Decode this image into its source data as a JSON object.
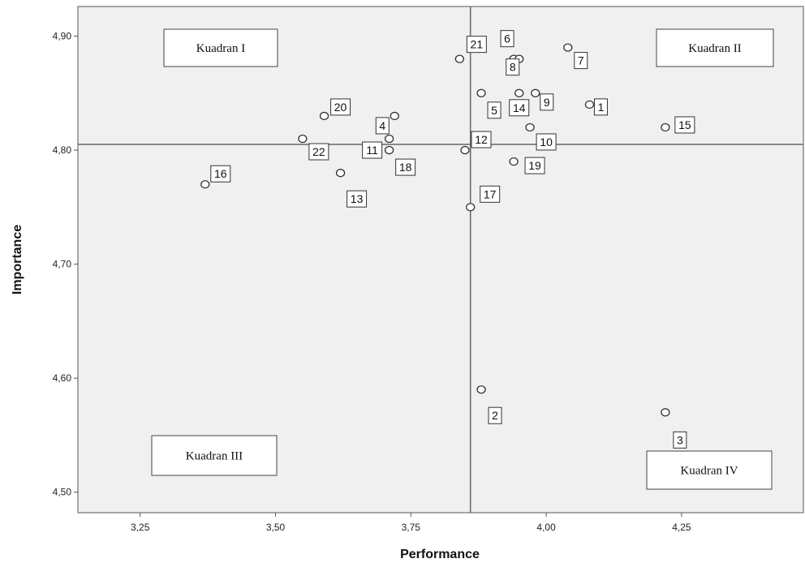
{
  "chart_data": {
    "type": "scatter",
    "xlabel": "Performance",
    "ylabel": "Importance",
    "xlim": [
      3.135,
      4.475
    ],
    "ylim": [
      4.482,
      4.926
    ],
    "x_ticks": [
      3.25,
      3.5,
      3.75,
      4.0,
      4.25
    ],
    "x_tick_labels": [
      "3,25",
      "3,50",
      "3,75",
      "4,00",
      "4,25"
    ],
    "y_ticks": [
      4.5,
      4.6,
      4.7,
      4.8,
      4.9
    ],
    "y_tick_labels": [
      "4,50",
      "4,60",
      "4,70",
      "4,80",
      "4,90"
    ],
    "grid": false,
    "reference_lines": {
      "x": 3.86,
      "y": 4.805
    },
    "quadrants": [
      "Kuadran I",
      "Kuadran II",
      "Kuadran III",
      "Kuadran IV"
    ],
    "points": [
      {
        "label": "1",
        "x": 4.08,
        "y": 4.84
      },
      {
        "label": "2",
        "x": 3.88,
        "y": 4.59
      },
      {
        "label": "3",
        "x": 4.22,
        "y": 4.57
      },
      {
        "label": "4",
        "x": 3.72,
        "y": 4.83
      },
      {
        "label": "5",
        "x": 3.88,
        "y": 4.85
      },
      {
        "label": "6",
        "x": 3.94,
        "y": 4.88
      },
      {
        "label": "7",
        "x": 4.04,
        "y": 4.89
      },
      {
        "label": "8",
        "x": 3.95,
        "y": 4.88
      },
      {
        "label": "9",
        "x": 3.98,
        "y": 4.85
      },
      {
        "label": "10",
        "x": 3.97,
        "y": 4.82
      },
      {
        "label": "11",
        "x": 3.71,
        "y": 4.81
      },
      {
        "label": "12",
        "x": 3.85,
        "y": 4.8
      },
      {
        "label": "13",
        "x": 3.62,
        "y": 4.78
      },
      {
        "label": "14",
        "x": 3.95,
        "y": 4.85
      },
      {
        "label": "15",
        "x": 4.22,
        "y": 4.82
      },
      {
        "label": "16",
        "x": 3.37,
        "y": 4.77
      },
      {
        "label": "17",
        "x": 3.86,
        "y": 4.75
      },
      {
        "label": "18",
        "x": 3.71,
        "y": 4.8
      },
      {
        "label": "19",
        "x": 3.94,
        "y": 4.79
      },
      {
        "label": "20",
        "x": 3.59,
        "y": 4.83
      },
      {
        "label": "21",
        "x": 3.84,
        "y": 4.88
      },
      {
        "label": "22",
        "x": 3.55,
        "y": 4.81
      }
    ]
  }
}
